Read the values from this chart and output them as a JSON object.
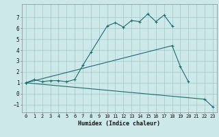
{
  "xlabel": "Humidex (Indice chaleur)",
  "bg_color": "#cce8e8",
  "line_color": "#1a6b6b",
  "grid_color": "#aacccc",
  "xlim": [
    -0.5,
    23.5
  ],
  "ylim": [
    -1.7,
    8.2
  ],
  "yticks": [
    -1,
    0,
    1,
    2,
    3,
    4,
    5,
    6,
    7
  ],
  "xticks": [
    0,
    1,
    2,
    3,
    4,
    5,
    6,
    7,
    8,
    9,
    10,
    11,
    12,
    13,
    14,
    15,
    16,
    17,
    18,
    19,
    20,
    21,
    22,
    23
  ],
  "series": [
    {
      "x": [
        0,
        1,
        2,
        3,
        4,
        5,
        6,
        7,
        8,
        10,
        11,
        12,
        13,
        14,
        15,
        16,
        17,
        18
      ],
      "y": [
        1.0,
        1.3,
        1.1,
        1.2,
        1.2,
        1.1,
        1.3,
        2.6,
        3.8,
        6.2,
        6.5,
        6.1,
        6.7,
        6.6,
        7.3,
        6.6,
        7.2,
        6.2
      ]
    },
    {
      "x": [
        0,
        18,
        19,
        20
      ],
      "y": [
        1.0,
        4.4,
        2.5,
        1.1
      ]
    },
    {
      "x": [
        0,
        22,
        23
      ],
      "y": [
        1.0,
        -0.5,
        -1.2
      ]
    }
  ]
}
